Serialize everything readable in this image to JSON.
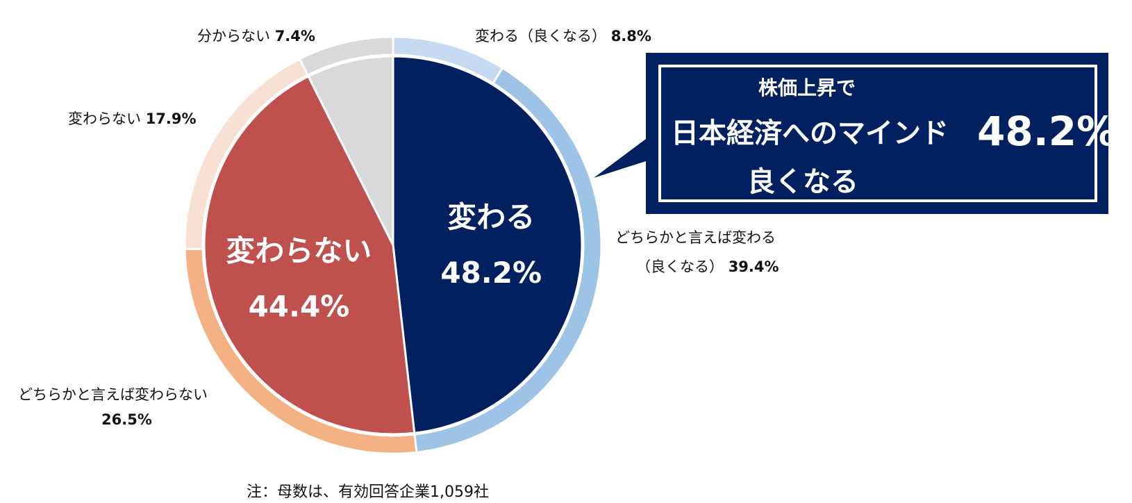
{
  "chart_data": {
    "type": "pie",
    "subtype": "double-ring",
    "inner": [
      {
        "name": "変わる",
        "value": 48.2,
        "label_top": "変わる",
        "label_bottom": "48.2%",
        "color": "#002060"
      },
      {
        "name": "変わらない",
        "value": 44.4,
        "label_top": "変わらない",
        "label_bottom": "44.4%",
        "color": "#C0504D"
      },
      {
        "name": "分からない",
        "value": 7.4,
        "color": "#D9D9D9"
      }
    ],
    "outer": [
      {
        "name": "変わる（良くなる）",
        "value": 8.8,
        "label": "変わる（良くなる） 8.8%",
        "color": "#C5D9F1"
      },
      {
        "name": "どちらかと言えば変わる（良くなる）",
        "value": 39.4,
        "color": "#9DC3E6"
      },
      {
        "name": "どちらかと言えば変わらない",
        "value": 26.5,
        "color": "#F4B183"
      },
      {
        "name": "変わらない",
        "value": 17.9,
        "color": "#F8E0D2"
      },
      {
        "name": "分からない",
        "value": 7.4,
        "color": "#D9D9D9"
      }
    ]
  },
  "labels": {
    "outer_1": {
      "text": "変わる（良くなる）",
      "value": "8.8%"
    },
    "outer_2_line1": "どちらかと言えば変わる",
    "outer_2_line2": "（良くなる）",
    "outer_2_value": "39.4%",
    "outer_3_line1": "どちらかと言えば変わらない",
    "outer_3_value": "26.5%",
    "outer_4": {
      "text": "変わらない",
      "value": "17.9%"
    },
    "outer_5": {
      "text": "分からない",
      "value": "7.4%"
    }
  },
  "callout": {
    "line1": "株価上昇で",
    "line2": "日本経済へのマインド",
    "line3": "良くなる",
    "value": "48.2%"
  },
  "note": "注：母数は、有効回答企業1,059社"
}
